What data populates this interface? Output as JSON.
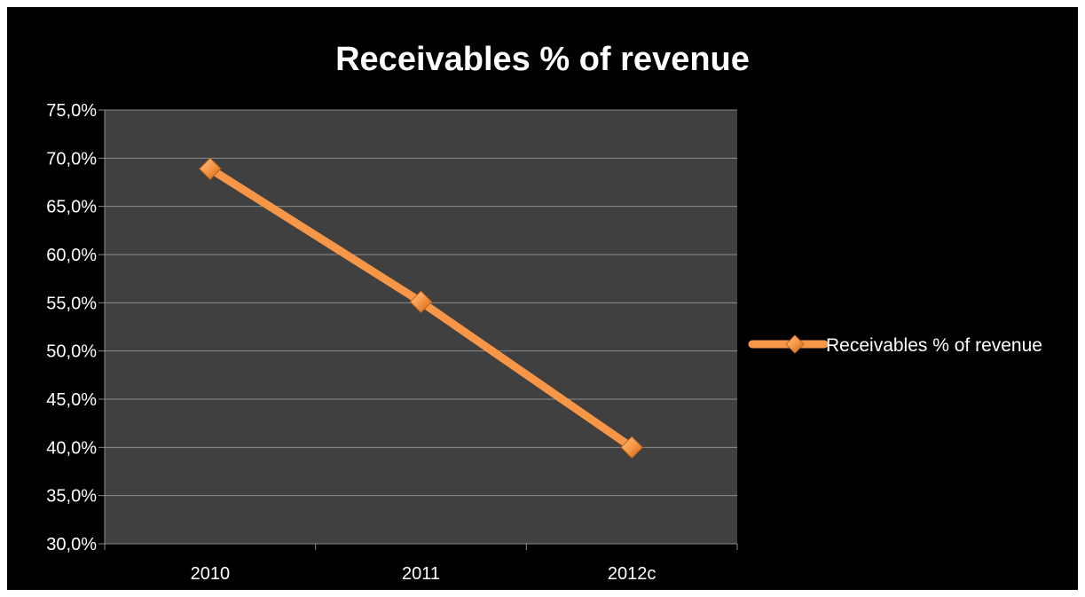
{
  "chart_data": {
    "type": "line",
    "title": "Receivables % of revenue",
    "categories": [
      "2010",
      "2011",
      "2012c"
    ],
    "series": [
      {
        "name": "Receivables % of revenue",
        "values": [
          0.689,
          0.551,
          0.4
        ]
      }
    ],
    "y_ticks": [
      "30,0%",
      "35,0%",
      "40,0%",
      "45,0%",
      "50,0%",
      "55,0%",
      "60,0%",
      "65,0%",
      "70,0%",
      "75,0%"
    ],
    "ylim": [
      0.3,
      0.75
    ],
    "y_step": 0.05,
    "xlabel": "",
    "ylabel": "",
    "grid": true,
    "legend_position": "right",
    "colors": {
      "background": "#000000",
      "plot_area": "#404040",
      "gridline": "#8c8c8c",
      "line": "#f79646",
      "marker": "#f7a24e",
      "text": "#ffffff"
    }
  }
}
